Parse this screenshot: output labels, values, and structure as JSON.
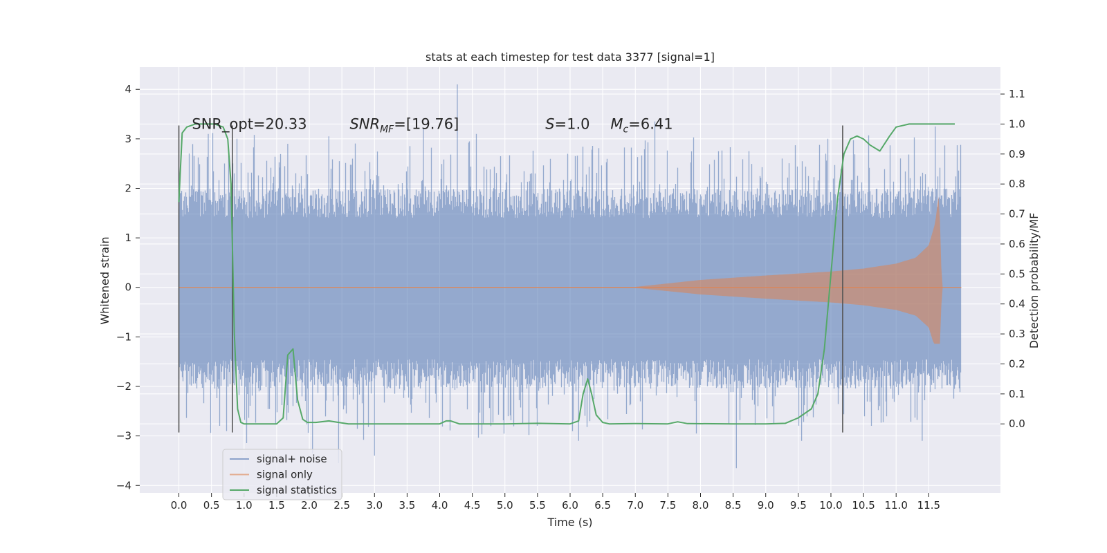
{
  "chart_data": {
    "type": "line",
    "title": "stats at each timestep for test data 3377 [signal=1]",
    "xlabel": "Time (s)",
    "ylabel_left": "Whitened strain",
    "ylabel_right": "Detection probability/MF",
    "xlim": [
      -0.6,
      12.6
    ],
    "ylim_left": [
      -4.15,
      4.45
    ],
    "ylim_right": [
      -0.23,
      1.19
    ],
    "grid": true,
    "legend_position": "lower-left",
    "x_ticks": [
      0.0,
      0.5,
      1.0,
      1.5,
      2.0,
      2.5,
      3.0,
      3.5,
      4.0,
      4.5,
      5.0,
      5.5,
      6.0,
      6.5,
      7.0,
      7.5,
      8.0,
      8.5,
      9.0,
      9.5,
      10.0,
      10.5,
      11.0,
      11.5
    ],
    "x_tick_labels": [
      "0.0",
      "0.5",
      "1.0",
      "1.5",
      "2.0",
      "2.5",
      "3.0",
      "3.5",
      "4.0",
      "4.5",
      "5.0",
      "5.5",
      "6.0",
      "6.5",
      "7.0",
      "7.5",
      "8.0",
      "8.5",
      "9.0",
      "9.5",
      "10.0",
      "10.5",
      "11.0",
      "11.5"
    ],
    "y_left_ticks": [
      4,
      3,
      2,
      1,
      0,
      -1,
      -2,
      -3,
      -4
    ],
    "y_left_tick_labels": [
      "4",
      "3",
      "2",
      "1",
      "0",
      "−1",
      "−2",
      "−3",
      "−4"
    ],
    "y_right_ticks": [
      1.1,
      1.0,
      0.9,
      0.8,
      0.7,
      0.6,
      0.5,
      0.4,
      0.3,
      0.2,
      0.1,
      0.0
    ],
    "y_right_tick_labels": [
      "1.1",
      "1.0",
      "0.9",
      "0.8",
      "0.7",
      "0.6",
      "0.5",
      "0.4",
      "0.3",
      "0.2",
      "0.1",
      "0.0"
    ],
    "vertical_lines_x": [
      0.0,
      0.82,
      10.18
    ],
    "vertical_lines_y_range": [
      -2.93,
      3.27
    ],
    "annotations": [
      {
        "text": "SNR_opt=20.33",
        "x": 0.2,
        "y": 3.3
      },
      {
        "text": "SNR",
        "sub": "MF",
        "rest": "=[19.76]",
        "italic": true,
        "x": 2.62,
        "y": 3.3
      },
      {
        "text": "S",
        "rest": "=1.0",
        "italic": true,
        "x": 5.62,
        "y": 3.3
      },
      {
        "text": "M",
        "sub": "c",
        "rest": "=6.41",
        "italic": true,
        "x": 6.62,
        "y": 3.3
      }
    ],
    "series": [
      {
        "name": "signal+ noise",
        "color": "#4c72b0",
        "noise_core_range": [
          -1.45,
          1.4
        ],
        "noise_spike_range": [
          -3.65,
          4.1
        ],
        "x_range": [
          0.0,
          12.0
        ],
        "notable_peaks": [
          {
            "x": 0.45,
            "y": 3.1
          },
          {
            "x": 1.67,
            "y": 2.9
          },
          {
            "x": 2.3,
            "y": 3.05
          },
          {
            "x": 3.75,
            "y": 3.2
          },
          {
            "x": 4.27,
            "y": 4.1
          },
          {
            "x": 7.3,
            "y": 3.35
          },
          {
            "x": 11.6,
            "y": 3.25
          },
          {
            "x": 8.55,
            "y": -3.65
          },
          {
            "x": 2.05,
            "y": -3.35
          },
          {
            "x": 3.0,
            "y": -3.4
          },
          {
            "x": 2.45,
            "y": -3.55
          },
          {
            "x": 6.13,
            "y": -3.1
          },
          {
            "x": 9.55,
            "y": -3.1
          },
          {
            "x": 11.4,
            "y": -3.1
          }
        ]
      },
      {
        "name": "signal only",
        "color": "#dd8452",
        "envelope": {
          "x": [
            0.0,
            7.0,
            8.0,
            9.0,
            10.0,
            10.5,
            11.0,
            11.3,
            11.5,
            11.6,
            11.65,
            11.68,
            11.7,
            12.0
          ],
          "y": [
            0.0,
            0.01,
            0.15,
            0.24,
            0.32,
            0.38,
            0.48,
            0.6,
            0.85,
            1.3,
            1.85,
            1.2,
            0.0,
            0.0
          ]
        },
        "x_range": [
          0.0,
          12.0
        ]
      },
      {
        "name": "signal statistics",
        "color": "#55a868",
        "axis": "right",
        "x": [
          0.0,
          0.05,
          0.12,
          0.25,
          0.4,
          0.55,
          0.68,
          0.75,
          0.8,
          0.85,
          0.9,
          0.95,
          1.0,
          1.5,
          1.6,
          1.67,
          1.75,
          1.82,
          1.9,
          1.97,
          2.1,
          2.3,
          2.45,
          2.6,
          3.0,
          4.0,
          4.1,
          4.17,
          4.3,
          5.0,
          5.5,
          6.0,
          6.13,
          6.2,
          6.27,
          6.33,
          6.4,
          6.5,
          6.6,
          7.0,
          7.5,
          7.65,
          7.8,
          8.5,
          9.0,
          9.3,
          9.5,
          9.7,
          9.8,
          9.9,
          10.0,
          10.1,
          10.2,
          10.3,
          10.4,
          10.5,
          10.6,
          10.75,
          10.9,
          11.0,
          11.2,
          11.5,
          11.9
        ],
        "y": [
          0.74,
          0.97,
          0.99,
          1.0,
          1.0,
          1.0,
          0.99,
          0.95,
          0.8,
          0.3,
          0.05,
          0.005,
          0.0,
          0.0,
          0.02,
          0.23,
          0.25,
          0.08,
          0.015,
          0.005,
          0.005,
          0.01,
          0.005,
          0.0,
          0.0,
          0.0,
          0.01,
          0.01,
          0.0,
          0.0,
          0.002,
          0.0,
          0.01,
          0.1,
          0.15,
          0.1,
          0.03,
          0.005,
          0.0,
          0.001,
          0.0,
          0.007,
          0.001,
          0.0,
          0.0,
          0.002,
          0.02,
          0.05,
          0.1,
          0.25,
          0.5,
          0.75,
          0.9,
          0.95,
          0.96,
          0.95,
          0.93,
          0.91,
          0.96,
          0.99,
          1.0,
          1.0,
          1.0
        ]
      }
    ]
  }
}
